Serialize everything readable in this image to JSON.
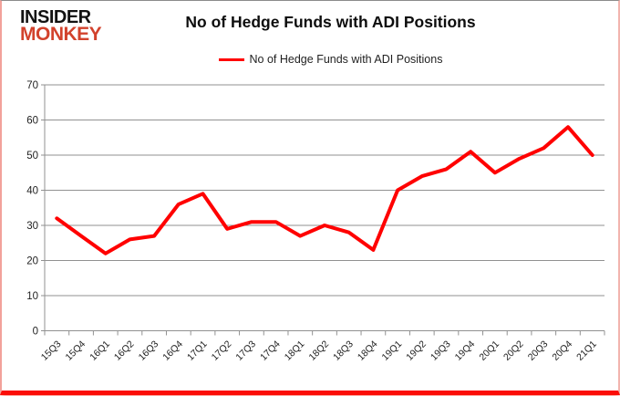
{
  "brand": {
    "line1": "INSIDER",
    "line2": "MONKEY",
    "line2_color": "#d2422c"
  },
  "title": "No of Hedge Funds with ADI Positions",
  "legend": {
    "label": "No of Hedge Funds with ADI Positions",
    "line_color": "#ff0000"
  },
  "chart_data": {
    "type": "line",
    "title": "No of Hedge Funds with ADI Positions",
    "categories": [
      "15Q3",
      "15Q4",
      "16Q1",
      "16Q2",
      "16Q3",
      "16Q4",
      "17Q1",
      "17Q2",
      "17Q3",
      "17Q4",
      "18Q1",
      "18Q2",
      "18Q3",
      "18Q4",
      "19Q1",
      "19Q2",
      "19Q3",
      "19Q4",
      "20Q1",
      "20Q2",
      "20Q3",
      "20Q4",
      "21Q1"
    ],
    "series": [
      {
        "name": "No of Hedge Funds with ADI Positions",
        "color": "#ff0000",
        "values": [
          32,
          27,
          22,
          26,
          27,
          36,
          39,
          29,
          31,
          31,
          27,
          30,
          28,
          23,
          40,
          44,
          46,
          51,
          45,
          49,
          52,
          58,
          50
        ]
      }
    ],
    "xlabel": "",
    "ylabel": "",
    "ylim": [
      0,
      70
    ],
    "yticks": [
      0,
      10,
      20,
      30,
      40,
      50,
      60,
      70
    ],
    "grid": true,
    "legend_position": "top-center",
    "grid_color": "#919191",
    "axis_text_color": "#1f1f1f"
  }
}
